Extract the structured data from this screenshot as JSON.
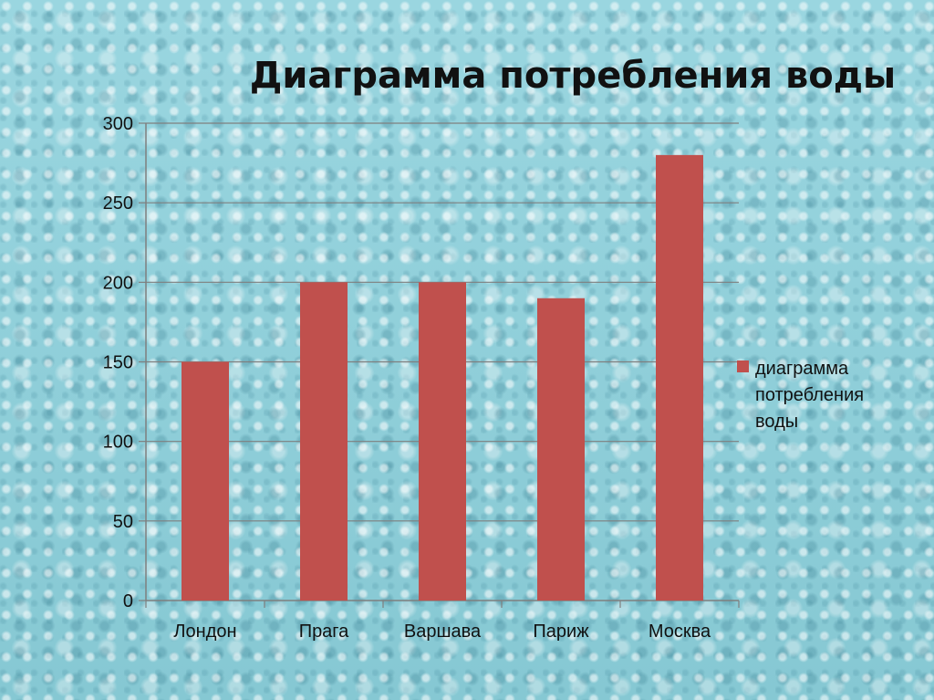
{
  "chart_data": {
    "type": "bar",
    "title": "Диаграмма потребления воды",
    "categories": [
      "Лондон",
      "Прага",
      "Варшава",
      "Париж",
      "Москва"
    ],
    "series": [
      {
        "name": "диаграмма потребления воды",
        "values": [
          150,
          200,
          200,
          190,
          280
        ]
      }
    ],
    "ylim": [
      0,
      300
    ],
    "yticks": [
      0,
      50,
      100,
      150,
      200,
      250,
      300
    ],
    "grid": true,
    "legend": "right",
    "colors": {
      "bar": "#c0504d",
      "grid": "#7f7f7f",
      "axis": "#7f7f7f"
    },
    "legend_lines": [
      "диаграмма",
      "потребления",
      "воды"
    ]
  }
}
